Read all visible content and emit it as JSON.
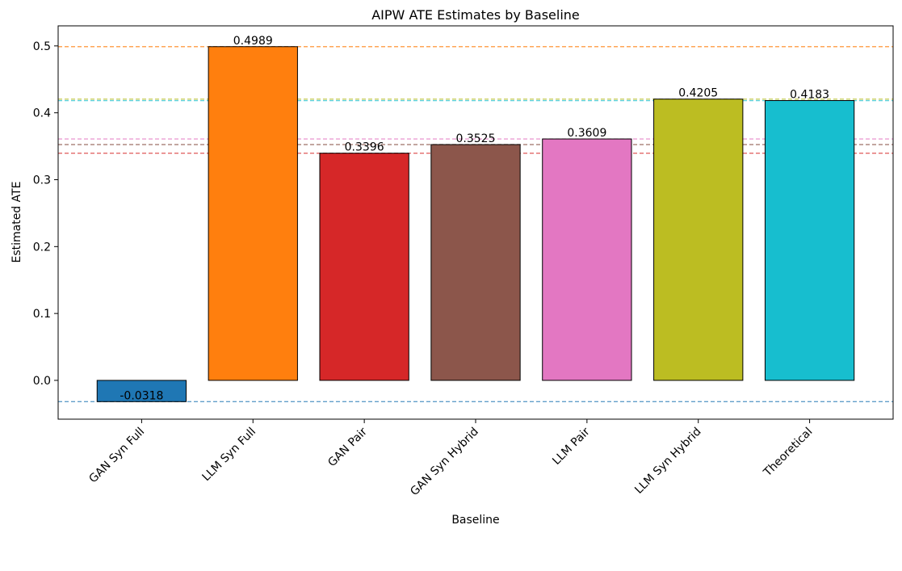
{
  "chart_data": {
    "type": "bar",
    "title": "AIPW ATE Estimates by Baseline",
    "x_label": "Baseline",
    "y_label": "Estimated ATE",
    "categories": [
      "GAN Syn Full",
      "LLM Syn Full",
      "GAN Pair",
      "GAN Syn Hybrid",
      "LLM Pair",
      "LLM Syn Hybrid",
      "Theoretical"
    ],
    "values": [
      -0.0318,
      0.4989,
      0.3396,
      0.3525,
      0.3609,
      0.4205,
      0.4183
    ],
    "colors": [
      "#1f77b4",
      "#ff7f0e",
      "#d62728",
      "#8c564b",
      "#e377c2",
      "#bcbd22",
      "#17becf"
    ],
    "ylim": [
      -0.058,
      0.53
    ],
    "yticks": [
      {
        "value": 0,
        "label": "0.0"
      },
      0.1,
      0.2,
      0.3,
      0.4,
      0.5
    ],
    "reference_lines": true
  }
}
